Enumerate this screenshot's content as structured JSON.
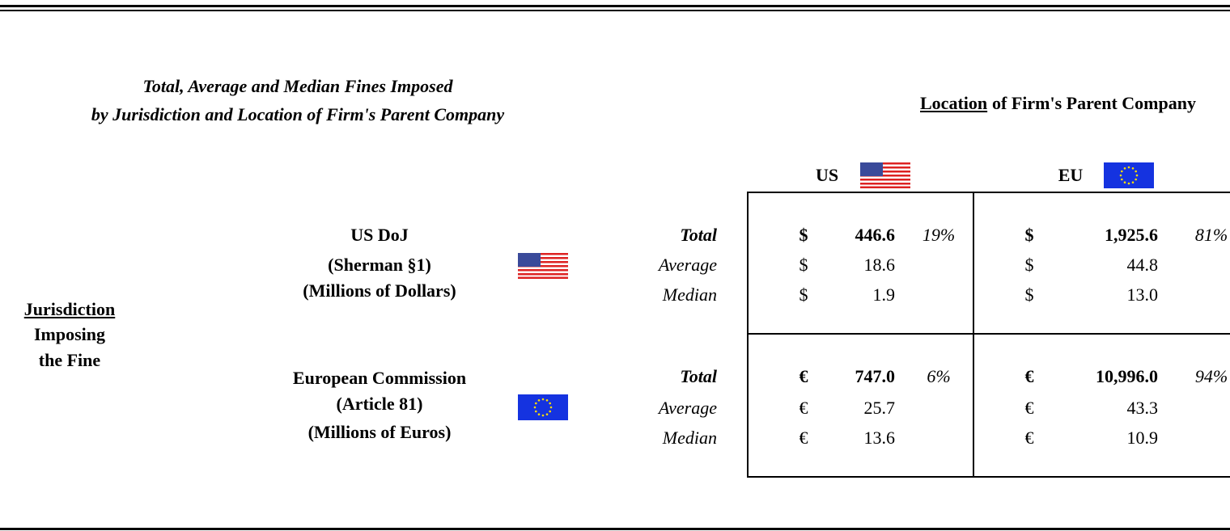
{
  "title": [
    "Total, Average and Median Fines Imposed",
    "by Jurisdiction and Location of Firm's Parent Company"
  ],
  "column_header": {
    "emphasis": "Location",
    "rest": "of Firm's Parent Company"
  },
  "columns": [
    "US",
    "EU"
  ],
  "row_header": {
    "emphasis": "Jurisdiction",
    "rest": [
      "Imposing",
      "the Fine"
    ]
  },
  "rows": [
    {
      "jurisdiction": [
        "US DoJ",
        "(Sherman §1)",
        "(Millions of Dollars)"
      ],
      "currency": "$",
      "stats": [
        "Total",
        "Average",
        "Median"
      ],
      "cells": [
        {
          "values": [
            "446.6",
            "18.6",
            "1.9"
          ],
          "share": "19%"
        },
        {
          "values": [
            "1,925.6",
            "44.8",
            "13.0"
          ],
          "share": "81%"
        }
      ]
    },
    {
      "jurisdiction": [
        "European Commission",
        "(Article 81)",
        "(Millions of Euros)"
      ],
      "currency": "€",
      "stats": [
        "Total",
        "Average",
        "Median"
      ],
      "cells": [
        {
          "values": [
            "747.0",
            "25.7",
            "13.6"
          ],
          "share": "6%"
        },
        {
          "values": [
            "10,996.0",
            "43.3",
            "10.9"
          ],
          "share": "94%"
        }
      ]
    }
  ]
}
